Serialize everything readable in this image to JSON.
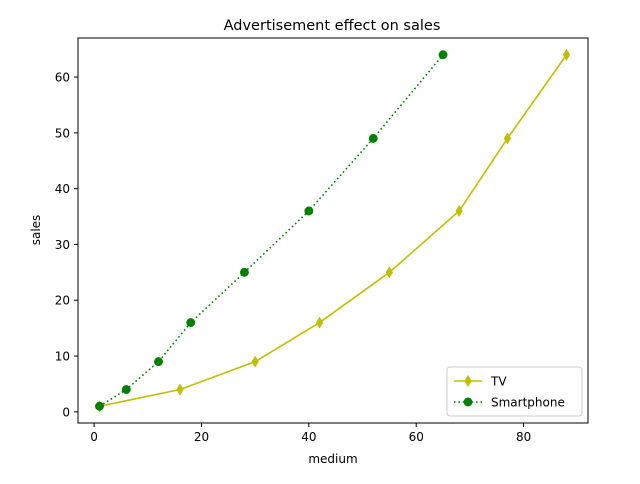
{
  "chart_data": {
    "type": "line",
    "title": "Advertisement effect on sales",
    "xlabel": "medium",
    "ylabel": "sales",
    "xlim": [
      -3,
      92
    ],
    "ylim": [
      -2,
      67
    ],
    "xticks": [
      0,
      20,
      40,
      60,
      80
    ],
    "yticks": [
      0,
      10,
      20,
      30,
      40,
      50,
      60
    ],
    "grid": false,
    "legend_position": "lower-right",
    "series": [
      {
        "name": "TV",
        "color": "#bfbf00",
        "line_style": "solid",
        "marker": "thin-diamond",
        "x": [
          1,
          16,
          30,
          42,
          55,
          68,
          77,
          88
        ],
        "y": [
          1,
          4,
          9,
          16,
          25,
          36,
          49,
          64
        ]
      },
      {
        "name": "Smartphone",
        "color": "#008000",
        "line_style": "dotted",
        "marker": "circle",
        "x": [
          1,
          6,
          12,
          18,
          28,
          40,
          52,
          65
        ],
        "y": [
          1,
          4,
          9,
          16,
          25,
          36,
          49,
          64
        ]
      }
    ]
  }
}
